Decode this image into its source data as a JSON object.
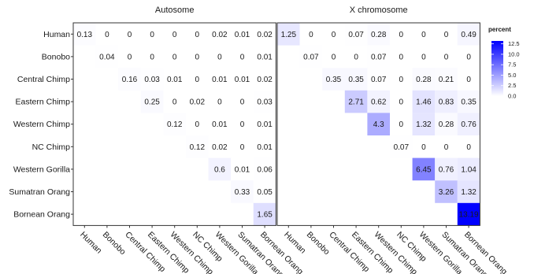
{
  "chart_data": {
    "type": "heatmap",
    "rows": [
      "Human",
      "Bonobo",
      "Central Chimp",
      "Eastern Chimp",
      "Western Chimp",
      "NC Chimp",
      "Western Gorilla",
      "Sumatran Orang",
      "Bornean Orang"
    ],
    "columns": [
      "Human",
      "Bonobo",
      "Central Chimp",
      "Eastern Chimp",
      "Western Chimp",
      "NC Chimp",
      "Western Gorilla",
      "Sumatran Orang",
      "Bornean Orang"
    ],
    "panels": [
      {
        "title": "Autosome",
        "values": [
          [
            0.13,
            0,
            0,
            0,
            0,
            0,
            0.02,
            0.01,
            0.02
          ],
          [
            null,
            0.04,
            0,
            0,
            0,
            0,
            0,
            0,
            0.01
          ],
          [
            null,
            null,
            0.16,
            0.03,
            0.01,
            0,
            0.01,
            0.01,
            0.02
          ],
          [
            null,
            null,
            null,
            0.25,
            0,
            0.02,
            0,
            0,
            0.03
          ],
          [
            null,
            null,
            null,
            null,
            0.12,
            0,
            0.01,
            0,
            0.01
          ],
          [
            null,
            null,
            null,
            null,
            null,
            0.12,
            0.02,
            0,
            0.01
          ],
          [
            null,
            null,
            null,
            null,
            null,
            null,
            0.6,
            0.01,
            0.06
          ],
          [
            null,
            null,
            null,
            null,
            null,
            null,
            null,
            0.33,
            0.05
          ],
          [
            null,
            null,
            null,
            null,
            null,
            null,
            null,
            null,
            1.65
          ]
        ]
      },
      {
        "title": "X chromosome",
        "values": [
          [
            1.25,
            0,
            0,
            0.07,
            0.28,
            0,
            0,
            0,
            0.49
          ],
          [
            null,
            0.07,
            0,
            0,
            0.07,
            0,
            0,
            0,
            0
          ],
          [
            null,
            null,
            0.35,
            0.35,
            0.07,
            0,
            0.28,
            0.21,
            0
          ],
          [
            null,
            null,
            null,
            2.71,
            0.62,
            0,
            1.46,
            0.83,
            0.35
          ],
          [
            null,
            null,
            null,
            null,
            4.3,
            0,
            1.32,
            0.28,
            0.76
          ],
          [
            null,
            null,
            null,
            null,
            null,
            0.07,
            0,
            0,
            0
          ],
          [
            null,
            null,
            null,
            null,
            null,
            null,
            6.45,
            0.76,
            1.04
          ],
          [
            null,
            null,
            null,
            null,
            null,
            null,
            null,
            3.26,
            1.32
          ],
          [
            null,
            null,
            null,
            null,
            null,
            null,
            null,
            null,
            13.19
          ]
        ]
      }
    ],
    "legend": {
      "title": "percent",
      "ticks": [
        "12.5",
        "10.0",
        "7.5",
        "5.0",
        "2.5",
        "0.0"
      ],
      "min": 0,
      "max": 13.19,
      "low_color": "#ffffff",
      "high_color": "#0000ff",
      "placement": "right"
    }
  }
}
